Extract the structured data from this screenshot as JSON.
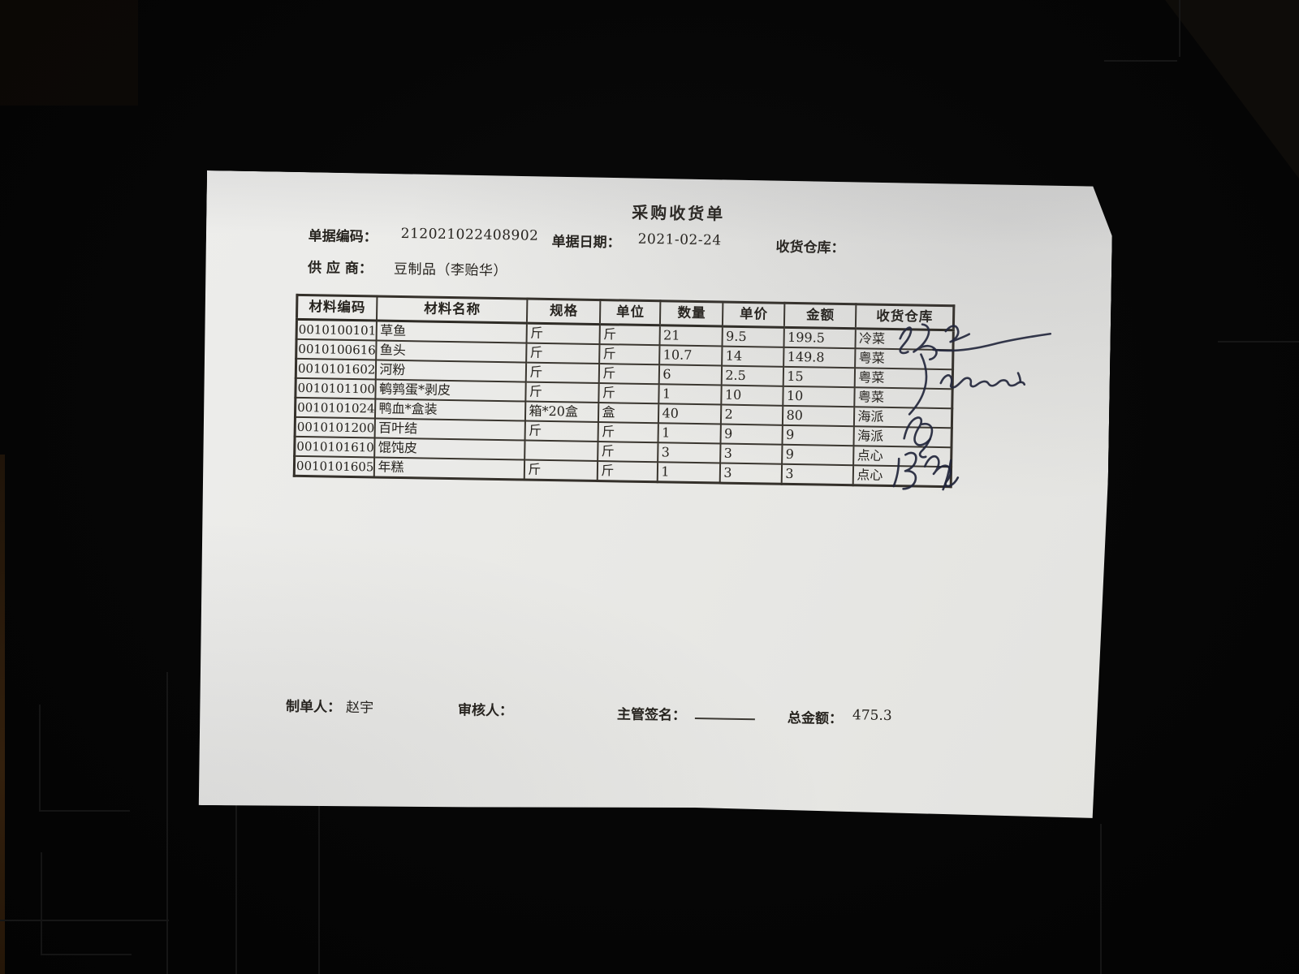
{
  "document": {
    "title": "采购收货单",
    "meta": {
      "doc_code_label": "单据编码：",
      "doc_code": "212021022408902",
      "doc_date_label": "单据日期：",
      "doc_date": "2021-02-24",
      "warehouse_label": "收货仓库：",
      "warehouse_value": "",
      "supplier_label": "供 应 商：",
      "supplier": "豆制品（李贻华）"
    },
    "table": {
      "headers": [
        "材料编码",
        "材料名称",
        "规格",
        "单位",
        "数量",
        "单价",
        "金额",
        "收货仓库"
      ],
      "rows": [
        [
          "0010100101",
          "草鱼",
          "斤",
          "斤",
          "21",
          "9.5",
          "199.5",
          "冷菜"
        ],
        [
          "0010100616",
          "鱼头",
          "斤",
          "斤",
          "10.7",
          "14",
          "149.8",
          "粤菜"
        ],
        [
          "0010101602",
          "河粉",
          "斤",
          "斤",
          "6",
          "2.5",
          "15",
          "粤菜"
        ],
        [
          "0010101100",
          "鹌鹑蛋*剥皮",
          "斤",
          "斤",
          "1",
          "10",
          "10",
          "粤菜"
        ],
        [
          "0010101024",
          "鸭血*盒装",
          "箱*20盒",
          "盒",
          "40",
          "2",
          "80",
          "海派"
        ],
        [
          "0010101200",
          "百叶结",
          "斤",
          "斤",
          "1",
          "9",
          "9",
          "海派"
        ],
        [
          "0010101610",
          "馄饨皮",
          "",
          "斤",
          "3",
          "3",
          "9",
          "点心"
        ],
        [
          "0010101605",
          "年糕",
          "斤",
          "斤",
          "1",
          "3",
          "3",
          "点心"
        ]
      ]
    },
    "footer": {
      "maker_label": "制单人：",
      "maker": "赵宇",
      "auditor_label": "审核人：",
      "auditor": "",
      "sign_label": "主管签名：",
      "total_label": "总金额：",
      "total": "475.3"
    },
    "handwriting": {
      "ink_color": "#20243a",
      "notes": [
        "signature over row 1 warehouse cell extending right",
        "long slash stroke across rows 2-4 warehouse cells",
        "cursive note to the right of rows 2-3 with tick mark",
        "signature over rows 5-6 warehouse cells",
        "signature over rows 7-8 warehouse cells"
      ]
    },
    "colors": {
      "paper": "#e9e9e6",
      "print": "#26231e",
      "table_line": "#34302a",
      "background": "#050505"
    }
  }
}
